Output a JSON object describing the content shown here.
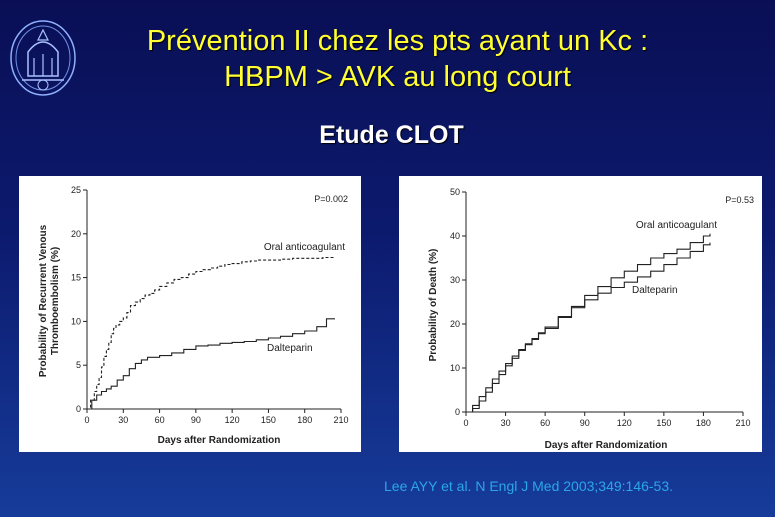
{
  "slide": {
    "title_line1": "Prévention II chez les pts ayant un Kc :",
    "title_line2": "HBPM > AVK au long court",
    "subtitle": "Etude CLOT",
    "citation": "Lee AYY et al. N Engl J Med 2003;349:146-53.",
    "title_color": "#ffff33",
    "citation_color": "#2ca6e8",
    "logo_icon": "institution-seal-icon"
  },
  "chart_data": [
    {
      "type": "line",
      "ylabel_line1": "Probability of Recurrent Venous",
      "ylabel_line2": "Thromboembolism (%)",
      "xlabel": "Days after Randomization",
      "annotation": "P=0.002",
      "xlim": [
        0,
        210
      ],
      "ylim": [
        0,
        25
      ],
      "xticks": [
        0,
        30,
        60,
        90,
        120,
        150,
        180,
        210
      ],
      "yticks": [
        0,
        5,
        10,
        15,
        20,
        25
      ],
      "step": true,
      "grid": false,
      "series": [
        {
          "name": "Oral anticoagulant",
          "style": "dashed",
          "x": [
            0,
            3,
            6,
            8,
            10,
            12,
            14,
            16,
            18,
            20,
            22,
            24,
            27,
            30,
            33,
            36,
            40,
            44,
            48,
            52,
            56,
            60,
            66,
            72,
            78,
            84,
            90,
            96,
            102,
            108,
            114,
            120,
            128,
            135,
            142,
            150,
            160,
            170,
            180,
            195,
            205
          ],
          "y": [
            0,
            1.0,
            2.0,
            2.8,
            3.6,
            4.8,
            6.0,
            6.8,
            7.6,
            8.6,
            9.2,
            9.6,
            10.0,
            10.4,
            11.0,
            11.8,
            12.2,
            12.6,
            13.0,
            13.2,
            13.6,
            14.0,
            14.4,
            14.8,
            15.0,
            15.4,
            15.7,
            15.9,
            16.1,
            16.3,
            16.5,
            16.6,
            16.8,
            16.9,
            17.0,
            17.0,
            17.1,
            17.2,
            17.2,
            17.3,
            17.3
          ]
        },
        {
          "name": "Dalteparin",
          "style": "solid",
          "x": [
            0,
            4,
            8,
            12,
            16,
            20,
            25,
            30,
            35,
            40,
            45,
            50,
            60,
            70,
            80,
            90,
            100,
            110,
            120,
            130,
            140,
            150,
            160,
            170,
            180,
            190,
            198,
            205
          ],
          "y": [
            0,
            1.0,
            1.6,
            2.0,
            2.3,
            2.6,
            3.3,
            3.8,
            4.6,
            5.2,
            5.6,
            5.9,
            6.1,
            6.4,
            6.8,
            7.2,
            7.3,
            7.5,
            7.6,
            7.7,
            7.9,
            8.1,
            8.3,
            8.6,
            8.9,
            9.4,
            10.3,
            10.3
          ]
        }
      ]
    },
    {
      "type": "line",
      "ylabel": "Probability of Death (%)",
      "xlabel": "Days after Randomization",
      "annotation": "P=0.53",
      "xlim": [
        0,
        210
      ],
      "ylim": [
        0,
        50
      ],
      "xticks": [
        0,
        30,
        60,
        90,
        120,
        150,
        180,
        210
      ],
      "yticks": [
        0,
        10,
        20,
        30,
        40,
        50
      ],
      "step": true,
      "grid": false,
      "series": [
        {
          "name": "Oral anticoagulant",
          "style": "solid",
          "x": [
            0,
            5,
            10,
            15,
            20,
            25,
            30,
            35,
            40,
            45,
            50,
            55,
            60,
            70,
            80,
            90,
            100,
            110,
            120,
            130,
            140,
            150,
            160,
            170,
            180,
            185
          ],
          "y": [
            0,
            0.8,
            2.5,
            4.5,
            6.5,
            8.5,
            10.5,
            12.2,
            14.0,
            15.3,
            16.5,
            17.8,
            19.0,
            21.5,
            24.0,
            26.5,
            28.5,
            30.5,
            32.0,
            33.5,
            35.0,
            36.0,
            37.0,
            38.5,
            40.0,
            40.5
          ]
        },
        {
          "name": "Dalteparin",
          "style": "solid",
          "x": [
            0,
            5,
            10,
            15,
            20,
            25,
            30,
            35,
            40,
            45,
            50,
            55,
            60,
            70,
            80,
            90,
            100,
            110,
            120,
            130,
            140,
            150,
            160,
            170,
            180,
            185
          ],
          "y": [
            0,
            1.5,
            3.5,
            5.5,
            7.5,
            9.3,
            11.0,
            12.7,
            14.2,
            15.5,
            16.7,
            18.0,
            19.3,
            21.7,
            23.7,
            25.5,
            27.0,
            28.3,
            29.5,
            30.7,
            32.0,
            33.5,
            35.0,
            36.5,
            38.0,
            38.5
          ]
        }
      ]
    }
  ]
}
